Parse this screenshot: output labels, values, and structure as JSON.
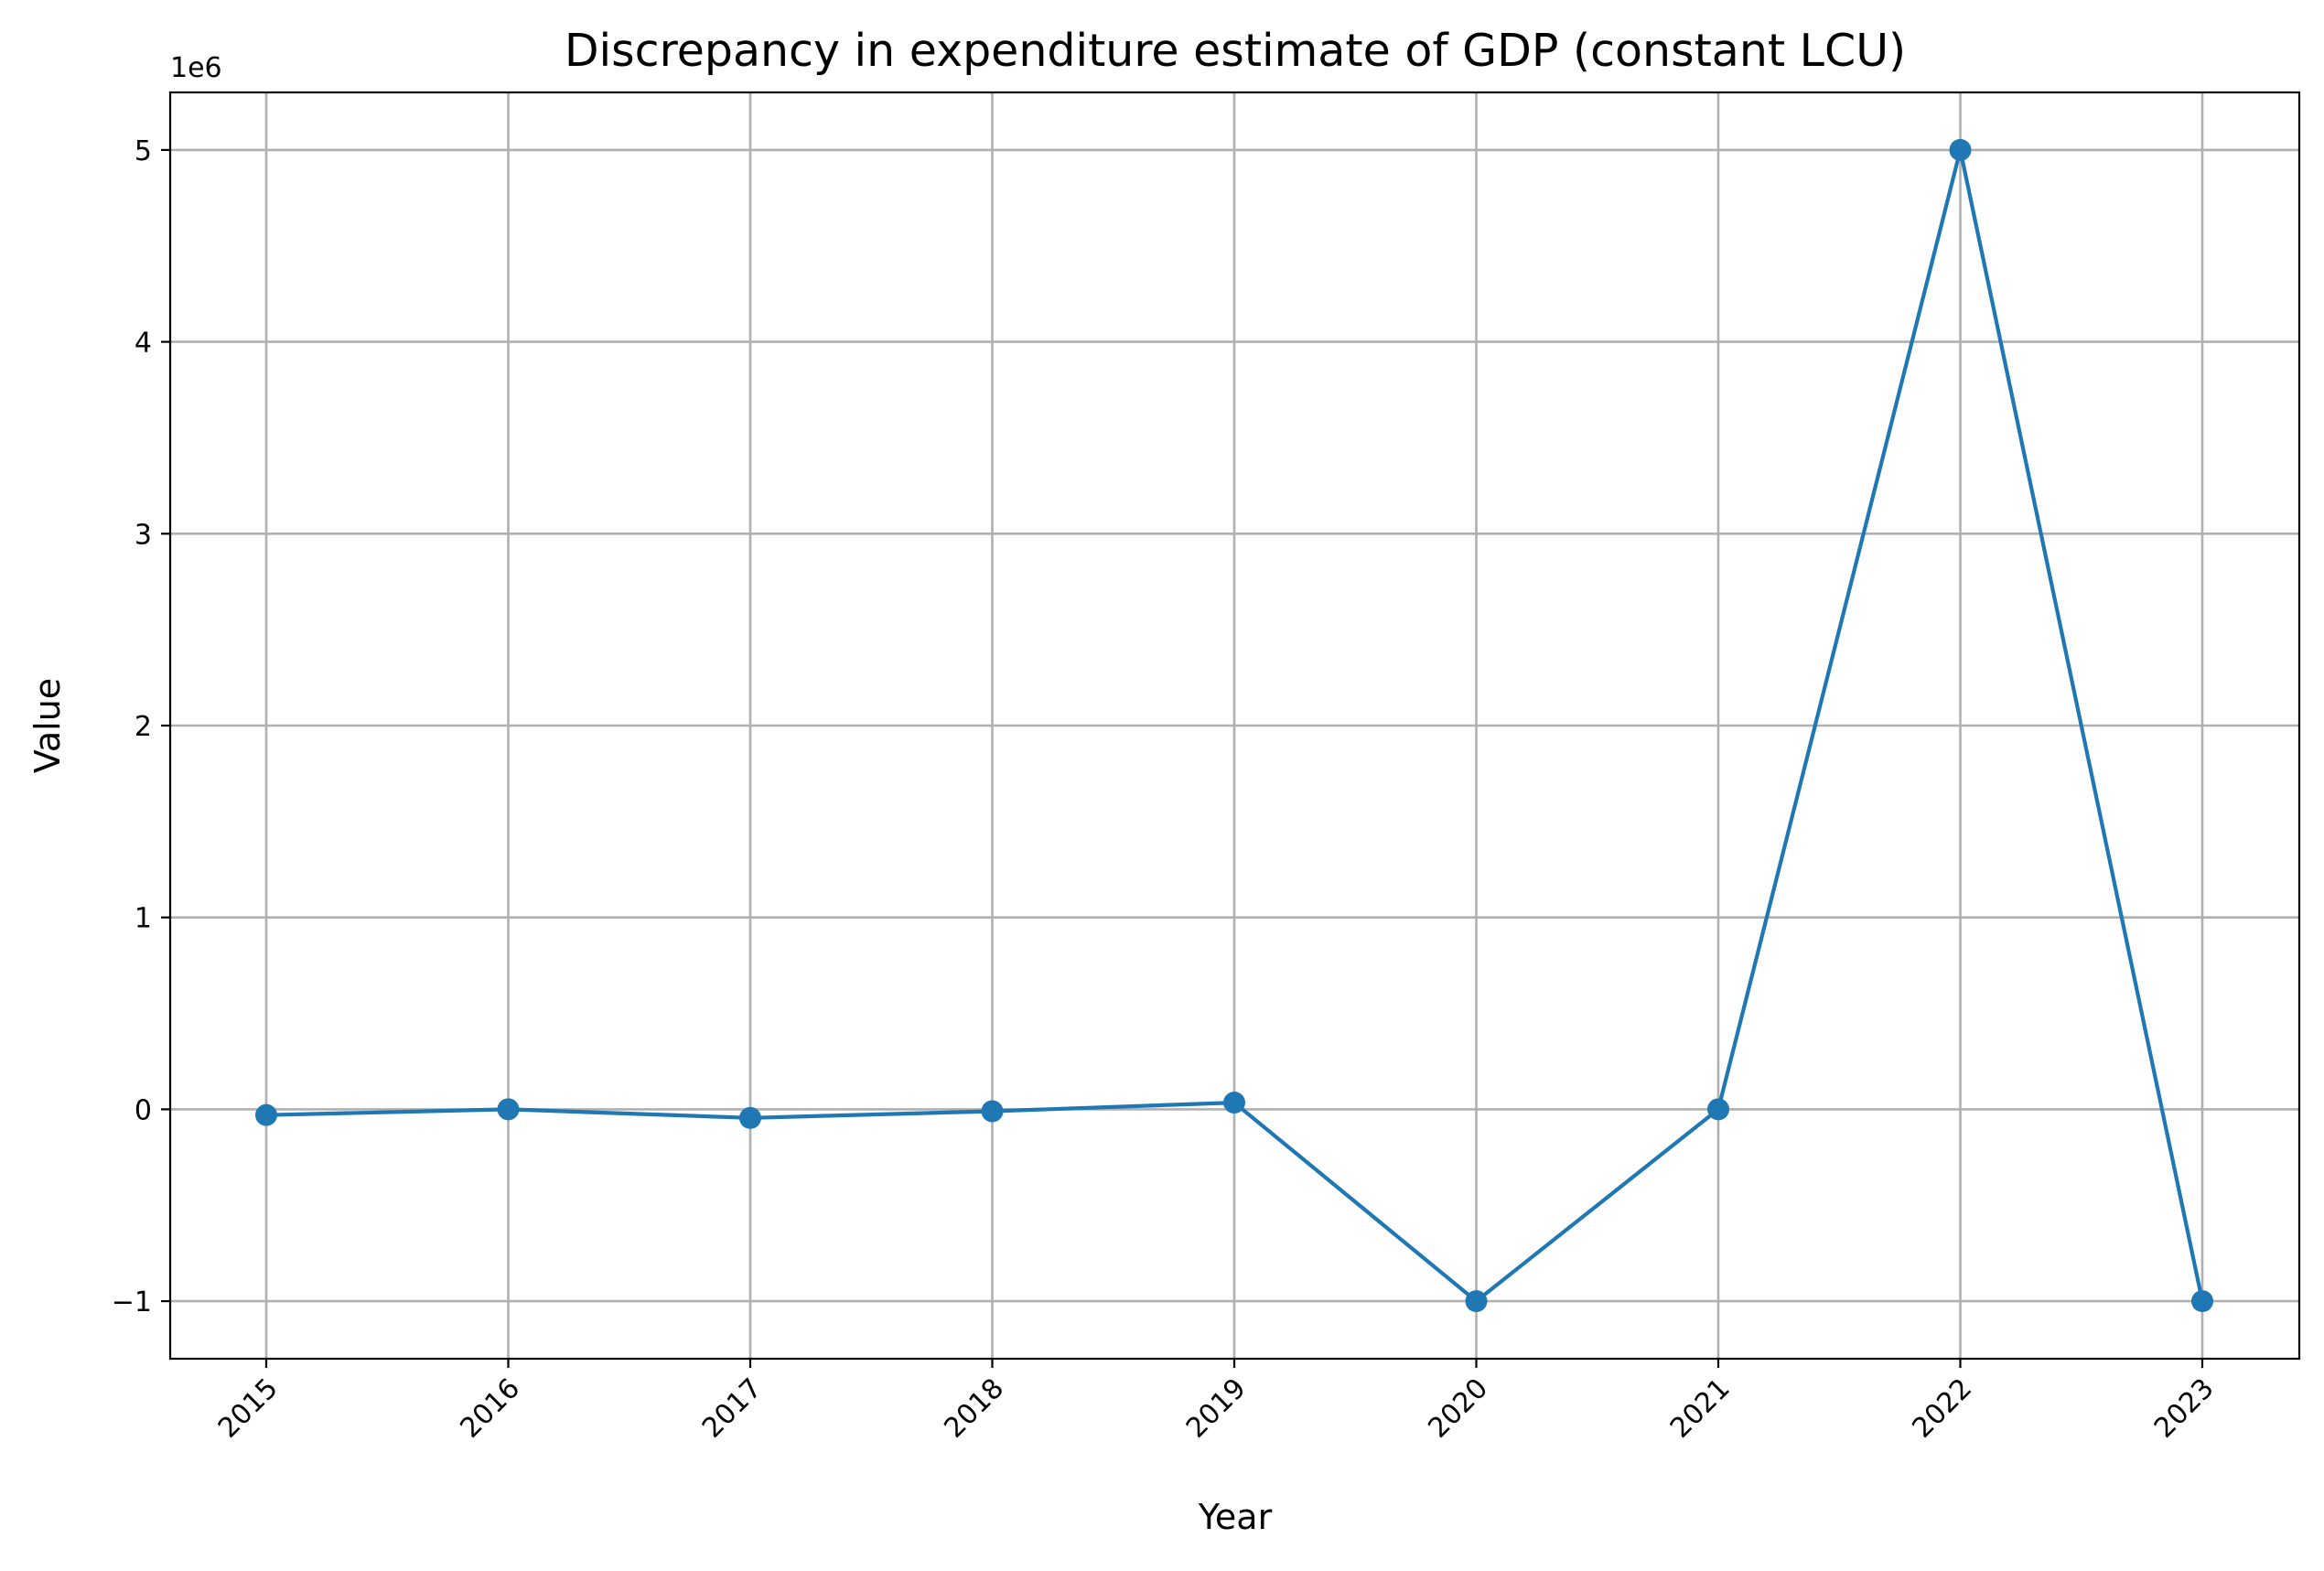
{
  "chart_data": {
    "type": "line",
    "title": "Discrepancy in expenditure estimate of GDP (constant LCU)",
    "xlabel": "Year",
    "ylabel": "Value",
    "y_offset_label": "1e6",
    "x": [
      "2015",
      "2016",
      "2017",
      "2018",
      "2019",
      "2020",
      "2021",
      "2022",
      "2023"
    ],
    "series": [
      {
        "values": [
          -30000,
          0,
          -45000,
          -10000,
          35000,
          -1000000,
          0,
          5000000,
          -1000000
        ],
        "color": "#1f77b4",
        "marker": "circle"
      }
    ],
    "yticks": [
      -1000000,
      0,
      1000000,
      2000000,
      3000000,
      4000000,
      5000000
    ],
    "ytick_labels": [
      "−1",
      "0",
      "1",
      "2",
      "3",
      "4",
      "5"
    ],
    "ylim": [
      -1300000,
      5300000
    ],
    "x_tick_rotation": "45 degrees",
    "grid": true,
    "legend": "none"
  }
}
